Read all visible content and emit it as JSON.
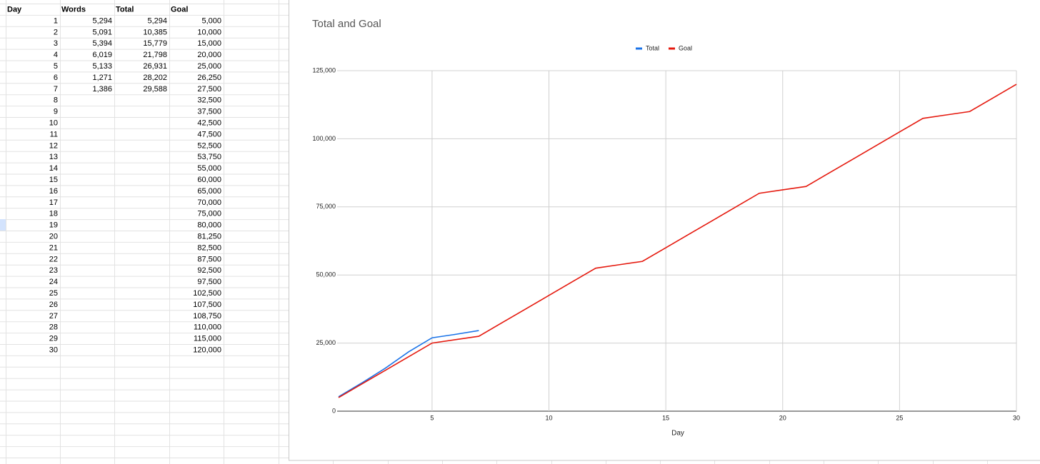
{
  "table": {
    "header": [
      "Day",
      "Words",
      "Total",
      "Goal"
    ],
    "rows": [
      [
        "1",
        "5,294",
        "5,294",
        "5,000"
      ],
      [
        "2",
        "5,091",
        "10,385",
        "10,000"
      ],
      [
        "3",
        "5,394",
        "15,779",
        "15,000"
      ],
      [
        "4",
        "6,019",
        "21,798",
        "20,000"
      ],
      [
        "5",
        "5,133",
        "26,931",
        "25,000"
      ],
      [
        "6",
        "1,271",
        "28,202",
        "26,250"
      ],
      [
        "7",
        "1,386",
        "29,588",
        "27,500"
      ],
      [
        "8",
        null,
        null,
        "32,500"
      ],
      [
        "9",
        null,
        null,
        "37,500"
      ],
      [
        "10",
        null,
        null,
        "42,500"
      ],
      [
        "11",
        null,
        null,
        "47,500"
      ],
      [
        "12",
        null,
        null,
        "52,500"
      ],
      [
        "13",
        null,
        null,
        "53,750"
      ],
      [
        "14",
        null,
        null,
        "55,000"
      ],
      [
        "15",
        null,
        null,
        "60,000"
      ],
      [
        "16",
        null,
        null,
        "65,000"
      ],
      [
        "17",
        null,
        null,
        "70,000"
      ],
      [
        "18",
        null,
        null,
        "75,000"
      ],
      [
        "19",
        null,
        null,
        "80,000"
      ],
      [
        "20",
        null,
        null,
        "81,250"
      ],
      [
        "21",
        null,
        null,
        "82,500"
      ],
      [
        "22",
        null,
        null,
        "87,500"
      ],
      [
        "23",
        null,
        null,
        "92,500"
      ],
      [
        "24",
        null,
        null,
        "97,500"
      ],
      [
        "25",
        null,
        null,
        "102,500"
      ],
      [
        "26",
        null,
        null,
        "107,500"
      ],
      [
        "27",
        null,
        null,
        "108,750"
      ],
      [
        "28",
        null,
        null,
        "110,000"
      ],
      [
        "29",
        null,
        null,
        "115,000"
      ],
      [
        "30",
        null,
        null,
        "120,000"
      ]
    ]
  },
  "chart_data": {
    "type": "line",
    "title": "Total and Goal",
    "xlabel": "Day",
    "legend": "top",
    "x": [
      1,
      2,
      3,
      4,
      5,
      6,
      7,
      8,
      9,
      10,
      11,
      12,
      13,
      14,
      15,
      16,
      17,
      18,
      19,
      20,
      21,
      22,
      23,
      24,
      25,
      26,
      27,
      28,
      29,
      30
    ],
    "series": [
      {
        "name": "Total",
        "color": "#1a73e8",
        "values": [
          5294,
          10385,
          15779,
          21798,
          26931,
          28202,
          29588,
          null,
          null,
          null,
          null,
          null,
          null,
          null,
          null,
          null,
          null,
          null,
          null,
          null,
          null,
          null,
          null,
          null,
          null,
          null,
          null,
          null,
          null,
          null
        ]
      },
      {
        "name": "Goal",
        "color": "#e5190e",
        "values": [
          5000,
          10000,
          15000,
          20000,
          25000,
          26250,
          27500,
          32500,
          37500,
          42500,
          47500,
          52500,
          53750,
          55000,
          60000,
          65000,
          70000,
          75000,
          80000,
          81250,
          82500,
          87500,
          92500,
          97500,
          102500,
          107500,
          108750,
          110000,
          115000,
          120000
        ]
      }
    ],
    "xlim": [
      1,
      30
    ],
    "xticks": [
      5,
      10,
      15,
      20,
      25,
      30
    ],
    "ylim": [
      0,
      125000
    ],
    "yticks": [
      0,
      {
        "value": 25000,
        "label": "25,000"
      },
      {
        "value": 50000,
        "label": "50,000"
      },
      {
        "value": 75000,
        "label": "75,000"
      },
      {
        "value": 100000,
        "label": "100,000"
      },
      {
        "value": 125000,
        "label": "125,000"
      }
    ],
    "grid": true
  }
}
